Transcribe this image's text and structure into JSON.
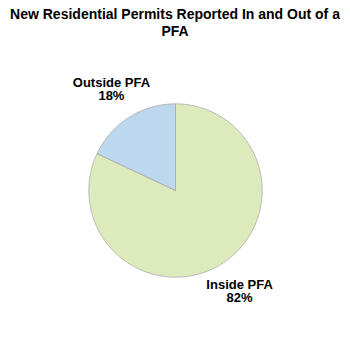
{
  "chart_data": {
    "type": "pie",
    "title": "New Residential Permits Reported In and Out of a PFA",
    "categories": [
      "Inside PFA",
      "Outside PFA"
    ],
    "values": [
      82,
      18
    ],
    "value_labels": [
      "82%",
      "18%"
    ],
    "colors": [
      "#ddeabb",
      "#bdd7ee"
    ],
    "data_labels": true
  }
}
